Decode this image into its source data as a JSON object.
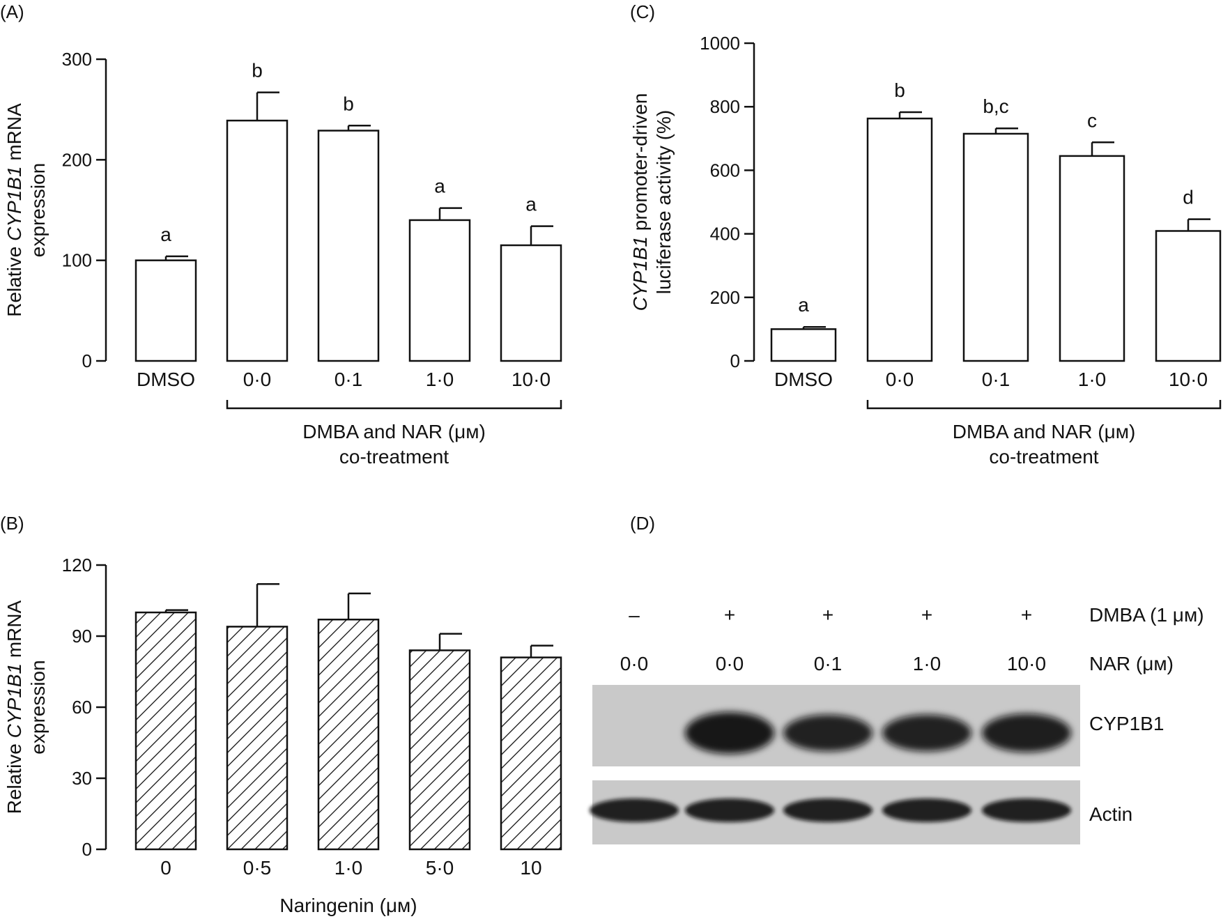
{
  "chart_data": [
    {
      "panel": "(A)",
      "type": "bar",
      "categories": [
        "DMSO",
        "0·0",
        "0·1",
        "1·0",
        "10·0"
      ],
      "values": [
        100,
        239,
        229,
        140,
        115
      ],
      "errors": [
        4,
        28,
        5,
        12,
        19
      ],
      "significance": [
        "a",
        "b",
        "b",
        "a",
        "a"
      ],
      "ylabel_pre": "Relative ",
      "ylabel_italic": "CYP1B1",
      "ylabel_post": " mRNA",
      "ylabel_line2": "expression",
      "xlabel_line1": "DMBA and NAR (μм)",
      "xlabel_line2": "co-treatment",
      "ylim": [
        0,
        300
      ],
      "yticks": [
        "0",
        "100",
        "200",
        "300"
      ],
      "pattern": "open",
      "bracket_from": 1
    },
    {
      "panel": "(B)",
      "type": "bar",
      "categories": [
        "0",
        "0·5",
        "1·0",
        "5·0",
        "10"
      ],
      "values": [
        100,
        94,
        97,
        84,
        81
      ],
      "errors": [
        1,
        18,
        11,
        7,
        5
      ],
      "significance": [],
      "ylabel_pre": "Relative ",
      "ylabel_italic": "CYP1B1",
      "ylabel_post": " mRNA",
      "ylabel_line2": "expression",
      "xlabel_line1": "Naringenin (μм)",
      "xlabel_line2": "",
      "ylim": [
        0,
        120
      ],
      "yticks": [
        "0",
        "30",
        "60",
        "90",
        "120"
      ],
      "pattern": "hatched",
      "bracket_from": -1
    },
    {
      "panel": "(C)",
      "type": "bar",
      "categories": [
        "DMSO",
        "0·0",
        "0·1",
        "1·0",
        "10·0"
      ],
      "values": [
        100,
        763,
        715,
        645,
        409
      ],
      "errors": [
        7,
        20,
        17,
        43,
        37
      ],
      "significance": [
        "a",
        "b",
        "b,c",
        "c",
        "d"
      ],
      "ylabel_pre": "",
      "ylabel_italic": "CYP1B1",
      "ylabel_post": " promoter-driven",
      "ylabel_line2": "luciferase activity (%)",
      "xlabel_line1": "DMBA and NAR (μм)",
      "xlabel_line2": "co-treatment",
      "ylim": [
        0,
        1000
      ],
      "yticks": [
        "0",
        "200",
        "400",
        "600",
        "800",
        "1000"
      ],
      "pattern": "open",
      "bracket_from": 1
    }
  ],
  "western_blot": {
    "panel": "(D)",
    "dmba_signs": [
      "–",
      "+",
      "+",
      "+",
      "+"
    ],
    "dmba_label": "DMBA (1 μм)",
    "nar_values": [
      "0·0",
      "0·0",
      "0·1",
      "1·0",
      "10·0"
    ],
    "nar_label": "NAR (μм)",
    "band_labels": [
      "CYP1B1",
      "Actin"
    ],
    "cyp1b1_intensity": [
      0,
      1,
      0.85,
      0.85,
      0.9
    ],
    "actin_intensity": [
      1,
      1,
      1,
      1,
      1
    ]
  }
}
